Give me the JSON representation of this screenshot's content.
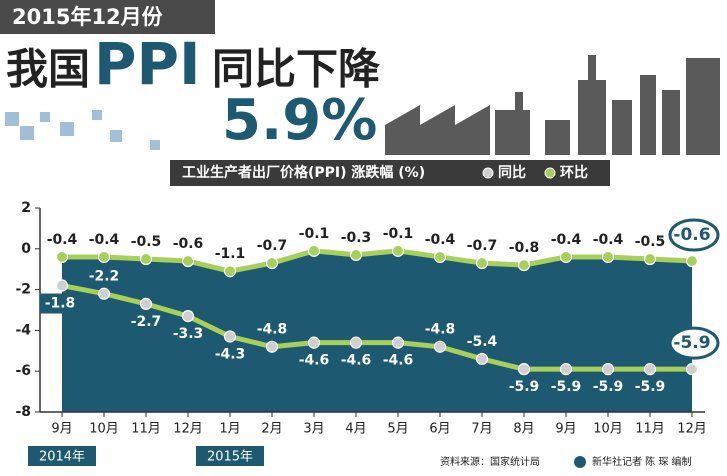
{
  "header": {
    "date": "2015年12月份",
    "title_a": "我国",
    "title_b": "PPI",
    "title_c": "同比下降",
    "headline": "5.9%"
  },
  "chart_data": {
    "type": "line",
    "legend_title": "工业生产者出厂价格(PPI) 涨跌幅 (%)",
    "categories": [
      "9月",
      "10月",
      "11月",
      "12月",
      "1月",
      "2月",
      "3月",
      "4月",
      "5月",
      "6月",
      "7月",
      "8月",
      "9月",
      "10月",
      "11月",
      "12月"
    ],
    "years": [
      "2014年",
      "2015年"
    ],
    "series": [
      {
        "name": "同比",
        "color": "#a6d05a",
        "marker_color": "#cfcfcf",
        "values": [
          -1.8,
          -2.2,
          -2.7,
          -3.3,
          -4.3,
          -4.8,
          -4.6,
          -4.6,
          -4.6,
          -4.8,
          -5.4,
          -5.9,
          -5.9,
          -5.9,
          -5.9,
          -5.9
        ]
      },
      {
        "name": "环比",
        "color": "#a6d05a",
        "marker_color": "#a6d05a",
        "values": [
          -0.4,
          -0.4,
          -0.5,
          -0.6,
          -1.1,
          -0.7,
          -0.1,
          -0.3,
          -0.1,
          -0.4,
          -0.7,
          -0.8,
          -0.4,
          -0.4,
          -0.5,
          -0.6
        ]
      }
    ],
    "area_color": "#1d5a72",
    "ylim": [
      -8,
      2
    ],
    "yticks": [
      2,
      0,
      -2,
      -4,
      -6,
      -8
    ]
  },
  "footer": {
    "source": "资料来源：国家统计局",
    "credit": "新华社记者 陈 琛 编制"
  }
}
